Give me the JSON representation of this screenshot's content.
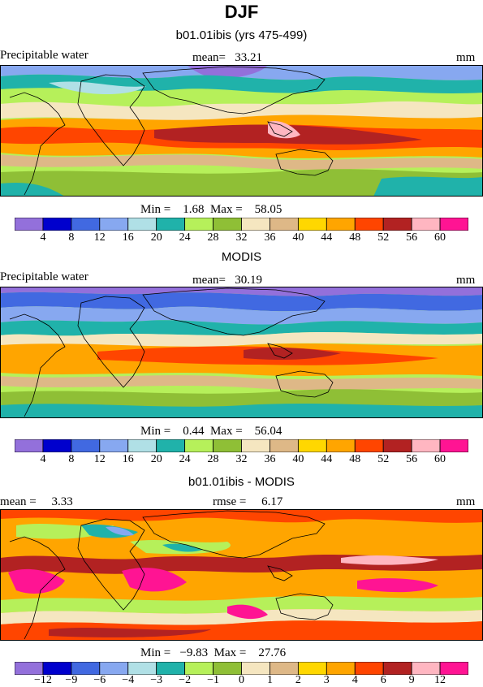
{
  "figure": {
    "title": "DJF",
    "variable": "Precipitable water",
    "units": "mm"
  },
  "panels": [
    {
      "title": "b01.01ibis (yrs 475-499)",
      "left_label": "Precipitable water",
      "center_label": "mean=   33.21",
      "units": "mm",
      "min_max": "Min =    1.68  Max =    58.05",
      "colorbar_colors": [
        "#9370db",
        "#0000cd",
        "#4169e1",
        "#87a8f0",
        "#b0e0e6",
        "#20b2aa",
        "#b6f05a",
        "#8fbf36",
        "#f5e6c0",
        "#deb887",
        "#ffd700",
        "#ffa500",
        "#ff4500",
        "#b22222",
        "#ffb6c1",
        "#ff1493"
      ],
      "colorbar_ticks": [
        "4",
        "8",
        "12",
        "16",
        "20",
        "24",
        "28",
        "32",
        "36",
        "40",
        "44",
        "48",
        "52",
        "56",
        "60"
      ]
    },
    {
      "title": "MODIS",
      "left_label": "Precipitable water",
      "center_label": "mean=   30.19",
      "units": "mm",
      "min_max": "Min =    0.44  Max =    56.04",
      "colorbar_colors": [
        "#9370db",
        "#0000cd",
        "#4169e1",
        "#87a8f0",
        "#b0e0e6",
        "#20b2aa",
        "#b6f05a",
        "#8fbf36",
        "#f5e6c0",
        "#deb887",
        "#ffd700",
        "#ffa500",
        "#ff4500",
        "#b22222",
        "#ffb6c1",
        "#ff1493"
      ],
      "colorbar_ticks": [
        "4",
        "8",
        "12",
        "16",
        "20",
        "24",
        "28",
        "32",
        "36",
        "40",
        "44",
        "48",
        "52",
        "56",
        "60"
      ]
    },
    {
      "title": "b01.01ibis - MODIS",
      "left_label": "mean =     3.33",
      "center_label": "rmse =     6.17",
      "units": "mm",
      "min_max": "Min =   −9.83  Max =    27.76",
      "colorbar_colors": [
        "#9370db",
        "#0000cd",
        "#4169e1",
        "#87a8f0",
        "#b0e0e6",
        "#20b2aa",
        "#b6f05a",
        "#8fbf36",
        "#f5e6c0",
        "#deb887",
        "#ffd700",
        "#ffa500",
        "#ff4500",
        "#b22222",
        "#ffb6c1",
        "#ff1493"
      ],
      "colorbar_ticks": [
        "−12",
        "−9",
        "−6",
        "−4",
        "−3",
        "−2",
        "−1",
        "0",
        "1",
        "2",
        "3",
        "4",
        "6",
        "9",
        "12"
      ]
    }
  ]
}
